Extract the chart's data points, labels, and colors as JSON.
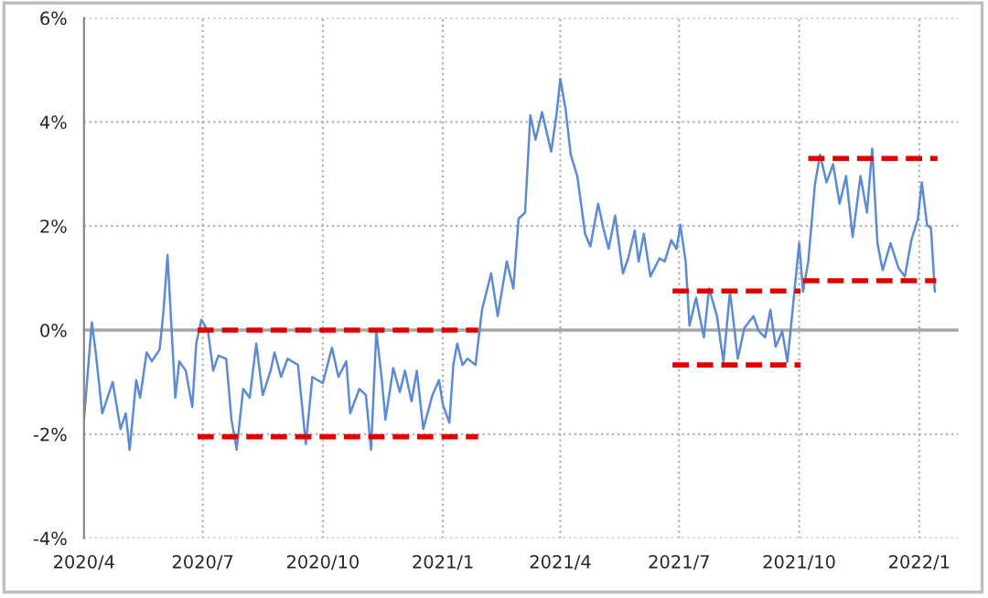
{
  "chart_data": {
    "type": "line",
    "xlim": [
      "2020-04-01",
      "2022-01-31"
    ],
    "xticks": [
      {
        "value": "2020-04-01",
        "label": "2020/4"
      },
      {
        "value": "2020-07-01",
        "label": "2020/7"
      },
      {
        "value": "2020-10-01",
        "label": "2020/10"
      },
      {
        "value": "2021-01-01",
        "label": "2021/1"
      },
      {
        "value": "2021-04-01",
        "label": "2021/4"
      },
      {
        "value": "2021-07-01",
        "label": "2021/7"
      },
      {
        "value": "2021-10-01",
        "label": "2021/10"
      },
      {
        "value": "2022-01-01",
        "label": "2022/1"
      }
    ],
    "ylim": [
      -4,
      6
    ],
    "yticks": [
      {
        "value": -4,
        "label": "-4%"
      },
      {
        "value": -2,
        "label": "-2%"
      },
      {
        "value": 0,
        "label": "0%"
      },
      {
        "value": 2,
        "label": "2%"
      },
      {
        "value": 4,
        "label": "4%"
      },
      {
        "value": 6,
        "label": "6%"
      }
    ],
    "grid": true,
    "legend": false,
    "marker": "none",
    "line_style": "solid",
    "ref_lines": [
      {
        "axis": "y",
        "value": 0,
        "color": "#a6a6a6",
        "line_style": "solid"
      }
    ],
    "series": [
      {
        "color": "#5b8bd6",
        "x": [
          "2020-04-01",
          "2020-04-07",
          "2020-04-10",
          "2020-04-15",
          "2020-04-23",
          "2020-04-29",
          "2020-05-03",
          "2020-05-06",
          "2020-05-11",
          "2020-05-14",
          "2020-05-19",
          "2020-05-23",
          "2020-05-29",
          "2020-06-01",
          "2020-06-04",
          "2020-06-10",
          "2020-06-13",
          "2020-06-18",
          "2020-06-23",
          "2020-06-26",
          "2020-06-30",
          "2020-07-05",
          "2020-07-09",
          "2020-07-13",
          "2020-07-19",
          "2020-07-23",
          "2020-07-27",
          "2020-08-01",
          "2020-08-06",
          "2020-08-11",
          "2020-08-16",
          "2020-08-22",
          "2020-08-25",
          "2020-08-30",
          "2020-09-04",
          "2020-09-12",
          "2020-09-18",
          "2020-09-23",
          "2020-10-01",
          "2020-10-08",
          "2020-10-13",
          "2020-10-19",
          "2020-10-22",
          "2020-10-29",
          "2020-11-03",
          "2020-11-07",
          "2020-11-11",
          "2020-11-15",
          "2020-11-18",
          "2020-11-24",
          "2020-11-29",
          "2020-12-03",
          "2020-12-08",
          "2020-12-12",
          "2020-12-17",
          "2020-12-24",
          "2020-12-29",
          "2021-01-01",
          "2021-01-06",
          "2021-01-09",
          "2021-01-12",
          "2021-01-16",
          "2021-01-20",
          "2021-01-26",
          "2021-01-31",
          "2021-02-07",
          "2021-02-12",
          "2021-02-19",
          "2021-02-24",
          "2021-02-28",
          "2021-03-05",
          "2021-03-09",
          "2021-03-13",
          "2021-03-18",
          "2021-03-25",
          "2021-03-29",
          "2021-04-01",
          "2021-04-05",
          "2021-04-09",
          "2021-04-14",
          "2021-04-20",
          "2021-04-24",
          "2021-04-30",
          "2021-05-04",
          "2021-05-08",
          "2021-05-13",
          "2021-05-19",
          "2021-05-23",
          "2021-05-28",
          "2021-05-31",
          "2021-06-04",
          "2021-06-09",
          "2021-06-16",
          "2021-06-20",
          "2021-06-25",
          "2021-06-29",
          "2021-07-02",
          "2021-07-06",
          "2021-07-09",
          "2021-07-14",
          "2021-07-20",
          "2021-07-24",
          "2021-07-30",
          "2021-08-04",
          "2021-08-09",
          "2021-08-15",
          "2021-08-20",
          "2021-08-27",
          "2021-08-31",
          "2021-09-05",
          "2021-09-09",
          "2021-09-13",
          "2021-09-18",
          "2021-09-22",
          "2021-09-26",
          "2021-10-01",
          "2021-10-04",
          "2021-10-08",
          "2021-10-13",
          "2021-10-17",
          "2021-10-22",
          "2021-10-27",
          "2021-11-01",
          "2021-11-06",
          "2021-11-11",
          "2021-11-17",
          "2021-11-22",
          "2021-11-26",
          "2021-11-30",
          "2021-12-04",
          "2021-12-10",
          "2021-12-16",
          "2021-12-21",
          "2021-12-26",
          "2021-12-31",
          "2022-01-03",
          "2022-01-07",
          "2022-01-10",
          "2022-01-13"
        ],
        "values": [
          -1.72,
          0.15,
          -0.43,
          -1.6,
          -1.0,
          -1.9,
          -1.6,
          -2.3,
          -0.96,
          -1.3,
          -0.43,
          -0.6,
          -0.37,
          0.39,
          1.44,
          -1.3,
          -0.6,
          -0.78,
          -1.48,
          -0.26,
          0.2,
          -0.02,
          -0.78,
          -0.49,
          -0.55,
          -1.72,
          -2.3,
          -1.13,
          -1.3,
          -0.26,
          -1.25,
          -0.78,
          -0.43,
          -0.9,
          -0.55,
          -0.67,
          -2.19,
          -0.9,
          -1.02,
          -0.34,
          -0.9,
          -0.6,
          -1.6,
          -1.13,
          -1.25,
          -2.3,
          -0.02,
          -0.9,
          -1.72,
          -0.73,
          -1.19,
          -0.78,
          -1.37,
          -0.78,
          -1.9,
          -1.25,
          -0.96,
          -1.43,
          -1.78,
          -0.67,
          -0.26,
          -0.67,
          -0.55,
          -0.67,
          0.39,
          1.09,
          0.27,
          1.32,
          0.8,
          2.14,
          2.26,
          4.13,
          3.66,
          4.19,
          3.43,
          4.13,
          4.83,
          4.25,
          3.37,
          2.96,
          1.85,
          1.61,
          2.43,
          1.96,
          1.56,
          2.2,
          1.09,
          1.38,
          1.91,
          1.32,
          1.85,
          1.03,
          1.38,
          1.32,
          1.73,
          1.56,
          2.02,
          1.32,
          0.09,
          0.62,
          -0.14,
          0.8,
          0.27,
          -0.61,
          0.74,
          -0.55,
          0.04,
          0.27,
          -0.02,
          -0.14,
          0.39,
          -0.32,
          -0.02,
          -0.61,
          0.39,
          1.67,
          0.74,
          1.32,
          2.78,
          3.37,
          2.84,
          3.19,
          2.43,
          2.96,
          1.79,
          2.96,
          2.26,
          3.49,
          1.67,
          1.15,
          1.67,
          1.2,
          1.03,
          1.73,
          2.14,
          2.84,
          2.02,
          1.96,
          0.74
        ]
      },
      {
        "type": "line",
        "line_style": "dashed",
        "color": "#e00000",
        "x": [
          "2020-06-27",
          "2021-01-28"
        ],
        "values": [
          0,
          0
        ]
      },
      {
        "type": "line",
        "line_style": "dashed",
        "color": "#e00000",
        "x": [
          "2020-06-27",
          "2021-01-28"
        ],
        "values": [
          -2.05,
          -2.05
        ]
      },
      {
        "type": "line",
        "line_style": "dashed",
        "color": "#e00000",
        "x": [
          "2021-06-26",
          "2021-10-02"
        ],
        "values": [
          0.75,
          0.75
        ]
      },
      {
        "type": "line",
        "line_style": "dashed",
        "color": "#e00000",
        "x": [
          "2021-06-26",
          "2021-10-02"
        ],
        "values": [
          -0.67,
          -0.67
        ]
      },
      {
        "type": "line",
        "line_style": "dashed",
        "color": "#e00000",
        "x": [
          "2021-10-08",
          "2022-01-15"
        ],
        "values": [
          3.3,
          3.3
        ]
      },
      {
        "type": "line",
        "line_style": "dashed",
        "color": "#e00000",
        "x": [
          "2021-10-04",
          "2022-01-14"
        ],
        "values": [
          0.95,
          0.95
        ]
      }
    ]
  }
}
